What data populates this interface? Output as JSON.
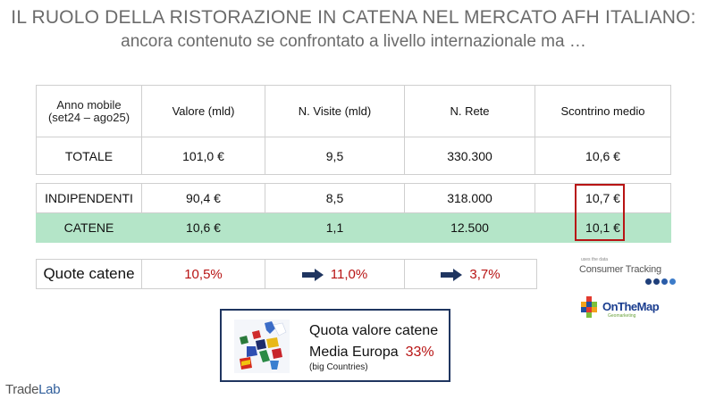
{
  "title": {
    "line1": "IL RUOLO DELLA RISTORAZIONE IN CATENA NEL MERCATO AFH ITALIANO:",
    "line2": "ancora contenuto se confrontato a livello internazionale ma …"
  },
  "summary_table": {
    "period_line1": "Anno mobile",
    "period_line2": "(set24 – ago25)",
    "headers": [
      "Valore (mld)",
      "N. Visite  (mld)",
      "N. Rete",
      "Scontrino medio"
    ],
    "total": {
      "label": "TOTALE",
      "values": [
        "101,0 €",
        "9,5",
        "330.300",
        "10,6 €"
      ]
    }
  },
  "split_table": {
    "rows": [
      {
        "label": "INDIPENDENTI",
        "values": [
          "90,4 €",
          "8,5",
          "318.000",
          "10,7 €"
        ]
      },
      {
        "label": "CATENE",
        "values": [
          "10,6 €",
          "1,1",
          "12.500",
          "10,1 €"
        ]
      }
    ],
    "highlight_color": "#b4e5c8",
    "box_color": "#b81414"
  },
  "quote_row": {
    "label": "Quote catene",
    "values": [
      "10,5%",
      "11,0%",
      "3,7%"
    ],
    "value_color": "#b81414",
    "arrow_icon": "right-arrow-icon"
  },
  "logos": {
    "consumer_tracking_small": "uses the data",
    "consumer_tracking": "Consumer Tracking",
    "onthemap": "OnTheMap",
    "onthemap_sub": "Geomarketing",
    "tradelab_a": "Trade",
    "tradelab_b": "Lab"
  },
  "europe_box": {
    "line1": "Quota valore catene",
    "line2": "Media Europa",
    "percent": "33%",
    "line3": "(big Countries)"
  }
}
